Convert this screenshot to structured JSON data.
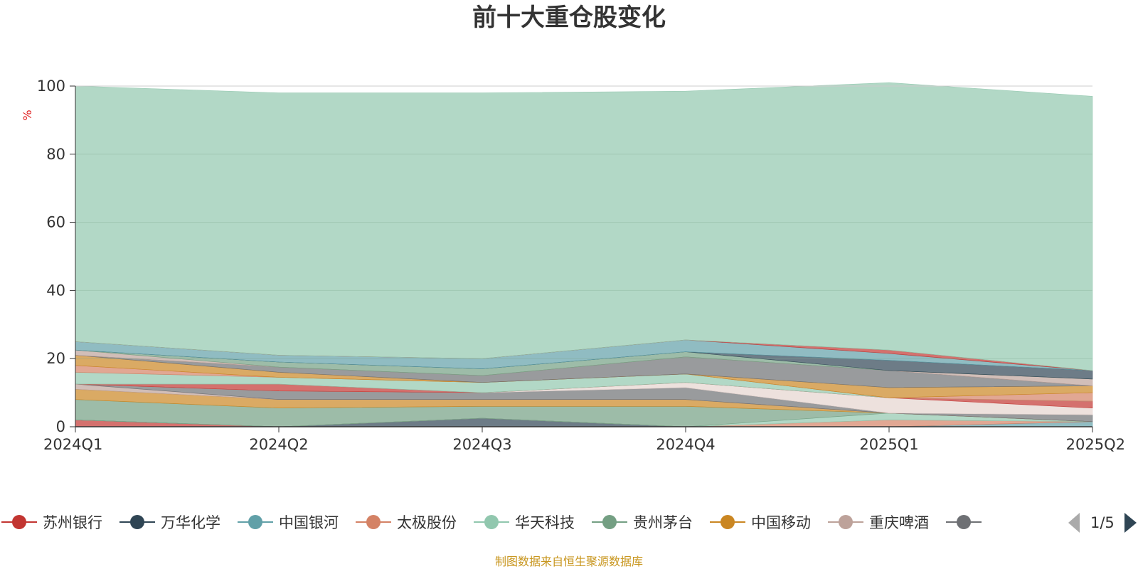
{
  "chart_data": {
    "type": "area",
    "title": "前十大重仓股变化",
    "ylabel": "%",
    "xlabel": "",
    "ylim": [
      0,
      100
    ],
    "yticks": [
      0,
      20,
      40,
      60,
      80,
      100
    ],
    "grid": true,
    "stacked": true,
    "categories": [
      "2024Q1",
      "2024Q2",
      "2024Q3",
      "2024Q4",
      "2025Q1",
      "2025Q2"
    ],
    "series": [
      {
        "name": "苏州银行",
        "color": "#c23531",
        "values": [
          2.0,
          0,
          0,
          0,
          0,
          0
        ]
      },
      {
        "name": "万华化学",
        "color": "#2f4554",
        "values": [
          0,
          0,
          2.5,
          0,
          0,
          0
        ]
      },
      {
        "name": "中国银河",
        "color": "#61a0a8",
        "values": [
          0,
          0,
          0,
          0,
          0,
          1.5
        ]
      },
      {
        "name": "太极股份",
        "color": "#d48265",
        "values": [
          0,
          0,
          0,
          0,
          2.0,
          0
        ]
      },
      {
        "name": "华天科技",
        "color": "#91c7ae",
        "values": [
          0,
          0,
          0,
          0,
          2.0,
          0
        ]
      },
      {
        "name": "贵州茅台",
        "color": "#749f83",
        "values": [
          6.0,
          5.5,
          3.5,
          6.0,
          0,
          0
        ]
      },
      {
        "name": "中国移动",
        "color": "#ca8622",
        "values": [
          3.0,
          2.5,
          2.0,
          2.0,
          0,
          0
        ]
      },
      {
        "name": "重庆啤酒",
        "color": "#bda29a",
        "values": [
          1.5,
          0,
          0,
          0,
          0,
          0
        ]
      },
      {
        "name": "",
        "color": "#6e7074",
        "values": [
          0,
          2.5,
          2.0,
          3.5,
          0,
          2.0
        ]
      },
      {
        "name": "",
        "color": "#e6d4cf",
        "values": [
          0,
          0,
          0,
          1.5,
          4.5,
          2.0
        ]
      },
      {
        "name": "",
        "color": "#c23531",
        "values": [
          0,
          2.0,
          0,
          0,
          0,
          2.0
        ]
      },
      {
        "name": "",
        "color": "#91c7ae",
        "values": [
          3.5,
          2.0,
          3.0,
          2.5,
          0,
          0
        ]
      },
      {
        "name": "",
        "color": "#d48265",
        "values": [
          2.0,
          0,
          0,
          0,
          0,
          2.5
        ]
      },
      {
        "name": "",
        "color": "#ca8622",
        "values": [
          3.0,
          1.5,
          0,
          0,
          3.0,
          2.0
        ]
      },
      {
        "name": "",
        "color": "#6e7074",
        "values": [
          0,
          1.5,
          2.0,
          5.0,
          5.0,
          0
        ]
      },
      {
        "name": "",
        "color": "#bda29a",
        "values": [
          1.5,
          0,
          0,
          0,
          0,
          2.0
        ]
      },
      {
        "name": "",
        "color": "#749f83",
        "values": [
          0,
          1.5,
          2.0,
          1.5,
          0,
          0
        ]
      },
      {
        "name": "",
        "color": "#2f4554",
        "values": [
          0,
          0,
          0,
          0,
          3.0,
          2.5
        ]
      },
      {
        "name": "",
        "color": "#61a0a8",
        "values": [
          2.5,
          2.0,
          3.0,
          3.5,
          2.0,
          0
        ]
      },
      {
        "name": "",
        "color": "#c23531",
        "values": [
          0,
          0,
          0,
          0,
          1.0,
          0
        ]
      },
      {
        "name": "",
        "color": "#91c7ae",
        "values": [
          75.0,
          77.0,
          78.0,
          73.0,
          78.5,
          80.5
        ]
      }
    ],
    "legend": {
      "position": "bottom",
      "items": [
        {
          "name": "苏州银行",
          "color": "#c23531"
        },
        {
          "name": "万华化学",
          "color": "#2f4554"
        },
        {
          "name": "中国银河",
          "color": "#61a0a8"
        },
        {
          "name": "太极股份",
          "color": "#d48265"
        },
        {
          "name": "华天科技",
          "color": "#91c7ae"
        },
        {
          "name": "贵州茅台",
          "color": "#749f83"
        },
        {
          "name": "中国移动",
          "color": "#ca8622"
        },
        {
          "name": "重庆啤酒",
          "color": "#bda29a"
        },
        {
          "name": "",
          "color": "#6e7074"
        }
      ],
      "page": "1/5"
    },
    "source_note": "制图数据来自恒生聚源数据库"
  }
}
